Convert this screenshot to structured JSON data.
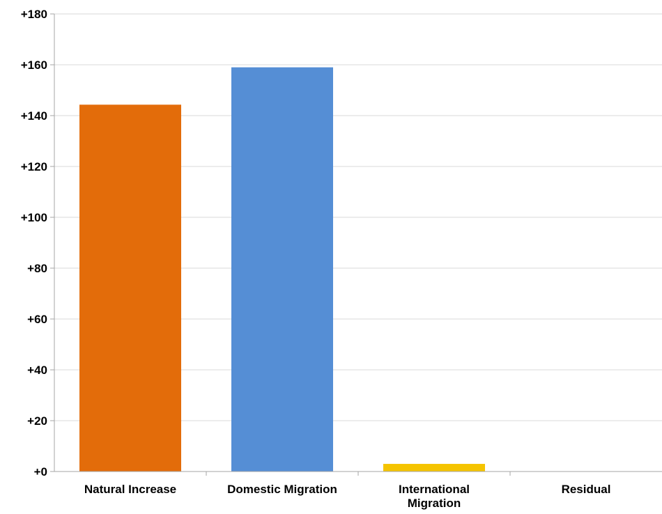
{
  "chart_data": {
    "type": "bar",
    "categories": [
      [
        "Natural Increase"
      ],
      [
        "Domestic Migration"
      ],
      [
        "International",
        "Migration"
      ],
      [
        "Residual"
      ]
    ],
    "values": [
      144.3,
      159,
      3,
      0
    ],
    "bar_colors": [
      "#e36c0a",
      "#558ed5",
      "#f5c400",
      "#f5c400"
    ],
    "ylim": [
      0,
      180
    ],
    "y_ticks": [
      {
        "value": 0,
        "label": "+0"
      },
      {
        "value": 20,
        "label": "+20"
      },
      {
        "value": 40,
        "label": "+40"
      },
      {
        "value": 60,
        "label": "+60"
      },
      {
        "value": 80,
        "label": "+80"
      },
      {
        "value": 100,
        "label": "+100"
      },
      {
        "value": 120,
        "label": "+120"
      },
      {
        "value": 140,
        "label": "+140"
      },
      {
        "value": 160,
        "label": "+160"
      },
      {
        "value": 180,
        "label": "+180"
      }
    ],
    "grid": true,
    "gridline_color": "#d9d9d9",
    "axis_color": "#a6a6a6",
    "title": "",
    "xlabel": "",
    "ylabel": ""
  }
}
